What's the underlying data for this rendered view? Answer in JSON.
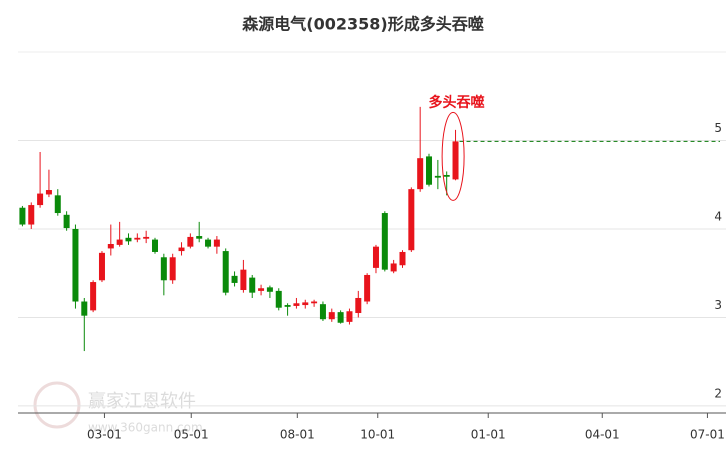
{
  "chart_data": {
    "type": "candlestick",
    "title": "森源电气(002358)形成多头吞噬",
    "annotation": "多头吞噬",
    "watermark": "赢家江恩软件",
    "watermark_url": "www.360gann.com",
    "categories": [
      null,
      null,
      null,
      null,
      null,
      null,
      null,
      null,
      null,
      null,
      null,
      null,
      null,
      null,
      null,
      null,
      null,
      null,
      null,
      null,
      null,
      null,
      null,
      null,
      null,
      null,
      null,
      null,
      null,
      null,
      null,
      null,
      null,
      null,
      null,
      null,
      null,
      null,
      null,
      null,
      null,
      null,
      null,
      null,
      null,
      null,
      null,
      null,
      null,
      null
    ],
    "open": [
      4.24,
      4.05,
      4.27,
      4.39,
      4.38,
      4.16,
      4.0,
      3.18,
      3.08,
      3.42,
      3.78,
      3.82,
      3.9,
      3.88,
      3.89,
      3.88,
      3.68,
      3.42,
      3.75,
      3.8,
      3.92,
      3.88,
      3.8,
      3.75,
      3.47,
      3.31,
      3.45,
      3.3,
      3.34,
      3.3,
      3.14,
      3.13,
      3.14,
      3.16,
      3.15,
      2.98,
      3.06,
      2.95,
      3.05,
      3.18,
      3.56,
      4.18,
      3.52,
      3.59,
      3.76,
      4.45,
      4.82,
      4.6,
      4.61,
      4.56
    ],
    "high": [
      4.26,
      4.3,
      4.87,
      4.67,
      4.45,
      4.2,
      4.05,
      3.22,
      3.42,
      3.75,
      4.05,
      4.08,
      3.95,
      3.95,
      3.98,
      3.9,
      3.72,
      3.72,
      3.85,
      3.95,
      4.08,
      3.9,
      3.92,
      3.78,
      3.52,
      3.65,
      3.48,
      3.37,
      3.36,
      3.33,
      3.16,
      3.22,
      3.2,
      3.2,
      3.18,
      3.1,
      3.08,
      3.1,
      3.3,
      3.5,
      3.82,
      4.2,
      3.65,
      3.76,
      4.47,
      5.38,
      4.85,
      4.78,
      4.65,
      5.12
    ],
    "low": [
      4.03,
      4.0,
      4.24,
      4.36,
      4.15,
      3.98,
      3.1,
      2.62,
      3.06,
      3.4,
      3.7,
      3.8,
      3.82,
      3.85,
      3.84,
      3.72,
      3.25,
      3.38,
      3.7,
      3.78,
      3.85,
      3.78,
      3.72,
      3.25,
      3.35,
      3.28,
      3.22,
      3.25,
      3.22,
      3.08,
      3.02,
      3.1,
      3.1,
      3.12,
      2.96,
      2.95,
      2.93,
      2.92,
      3.0,
      3.15,
      3.5,
      3.52,
      3.5,
      3.56,
      3.74,
      4.42,
      4.48,
      4.45,
      4.38,
      4.55
    ],
    "close": [
      4.05,
      4.27,
      4.4,
      4.44,
      4.18,
      4.01,
      3.18,
      3.02,
      3.4,
      3.73,
      3.83,
      3.88,
      3.86,
      3.9,
      3.91,
      3.74,
      3.42,
      3.68,
      3.79,
      3.91,
      3.89,
      3.8,
      3.88,
      3.28,
      3.39,
      3.54,
      3.28,
      3.33,
      3.29,
      3.11,
      3.12,
      3.16,
      3.17,
      3.18,
      2.98,
      3.06,
      2.94,
      3.07,
      3.22,
      3.48,
      3.8,
      3.54,
      3.61,
      3.74,
      4.45,
      4.8,
      4.5,
      4.58,
      4.59,
      4.99
    ],
    "up_color": "#e8141c",
    "down_color": "#0a8a0a",
    "xlim": [
      -0.5,
      79.6
    ],
    "xticks": [
      {
        "value": 9.28,
        "label": "03-01"
      },
      {
        "value": 19.1,
        "label": "05-01"
      },
      {
        "value": 31.1,
        "label": "08-01"
      },
      {
        "value": 40.2,
        "label": "10-01"
      },
      {
        "value": 52.7,
        "label": "01-01"
      },
      {
        "value": 65.6,
        "label": "04-01"
      },
      {
        "value": 77.5,
        "label": "07-01"
      }
    ],
    "ylim": [
      1.92,
      6.0
    ],
    "yticks": [
      2,
      3,
      4,
      5
    ],
    "grid": true
  }
}
